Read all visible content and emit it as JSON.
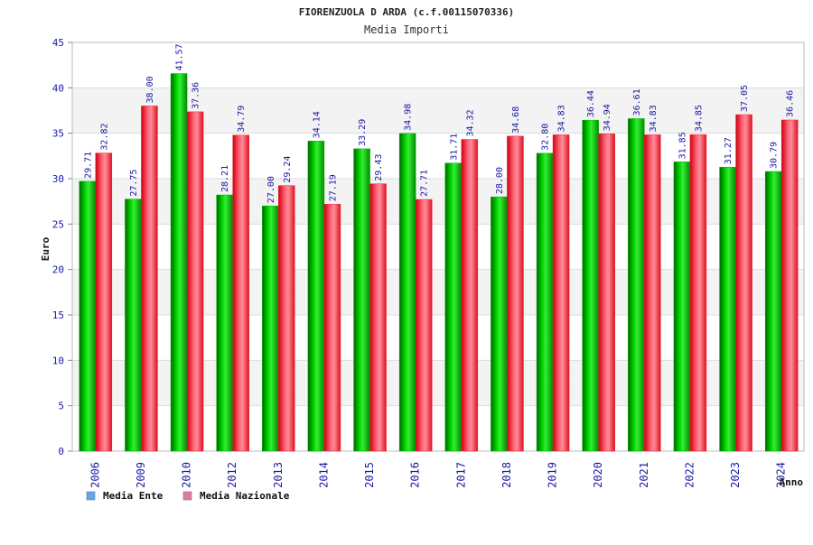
{
  "chart_data": {
    "type": "bar",
    "title": "FIORENZUOLA D ARDA (c.f.00115070336)",
    "subtitle": "Media Importi",
    "xlabel": "Anno",
    "ylabel": "Euro",
    "ylim": [
      0,
      45
    ],
    "yticks": [
      "0",
      "5",
      "10",
      "15",
      "20",
      "25",
      "30",
      "35",
      "40",
      "45"
    ],
    "ytick_values": [
      0,
      5,
      10,
      15,
      20,
      25,
      30,
      35,
      40,
      45
    ],
    "categories": [
      "2006",
      "2009",
      "2010",
      "2012",
      "2013",
      "2014",
      "2015",
      "2016",
      "2017",
      "2018",
      "2019",
      "2020",
      "2021",
      "2022",
      "2023",
      "2024"
    ],
    "series": [
      {
        "name": "Media Ente",
        "color": "#00b200",
        "legend_color": "#5fa7f0",
        "values": [
          29.71,
          27.75,
          41.57,
          28.21,
          27.0,
          34.14,
          33.29,
          34.98,
          31.71,
          28.0,
          32.8,
          36.44,
          36.61,
          31.85,
          31.27,
          30.79
        ],
        "value_labels": [
          "29.71",
          "27.75",
          "41.57",
          "28.21",
          "27.00",
          "34.14",
          "33.29",
          "34.98",
          "31.71",
          "28.00",
          "32.80",
          "36.44",
          "36.61",
          "31.85",
          "31.27",
          "30.79"
        ]
      },
      {
        "name": "Media Nazionale",
        "color": "#ee2233",
        "legend_color": "#e07aa4",
        "values": [
          32.82,
          38.0,
          37.36,
          34.79,
          29.24,
          27.19,
          29.43,
          27.71,
          34.32,
          34.68,
          34.83,
          34.94,
          34.83,
          34.85,
          37.05,
          36.46
        ],
        "value_labels": [
          "32.82",
          "38.00",
          "37.36",
          "34.79",
          "29.24",
          "27.19",
          "29.43",
          "27.71",
          "34.32",
          "34.68",
          "34.83",
          "34.94",
          "34.83",
          "34.85",
          "37.05",
          "36.46"
        ]
      }
    ],
    "grid": true,
    "legend_position": "bottom-left"
  }
}
